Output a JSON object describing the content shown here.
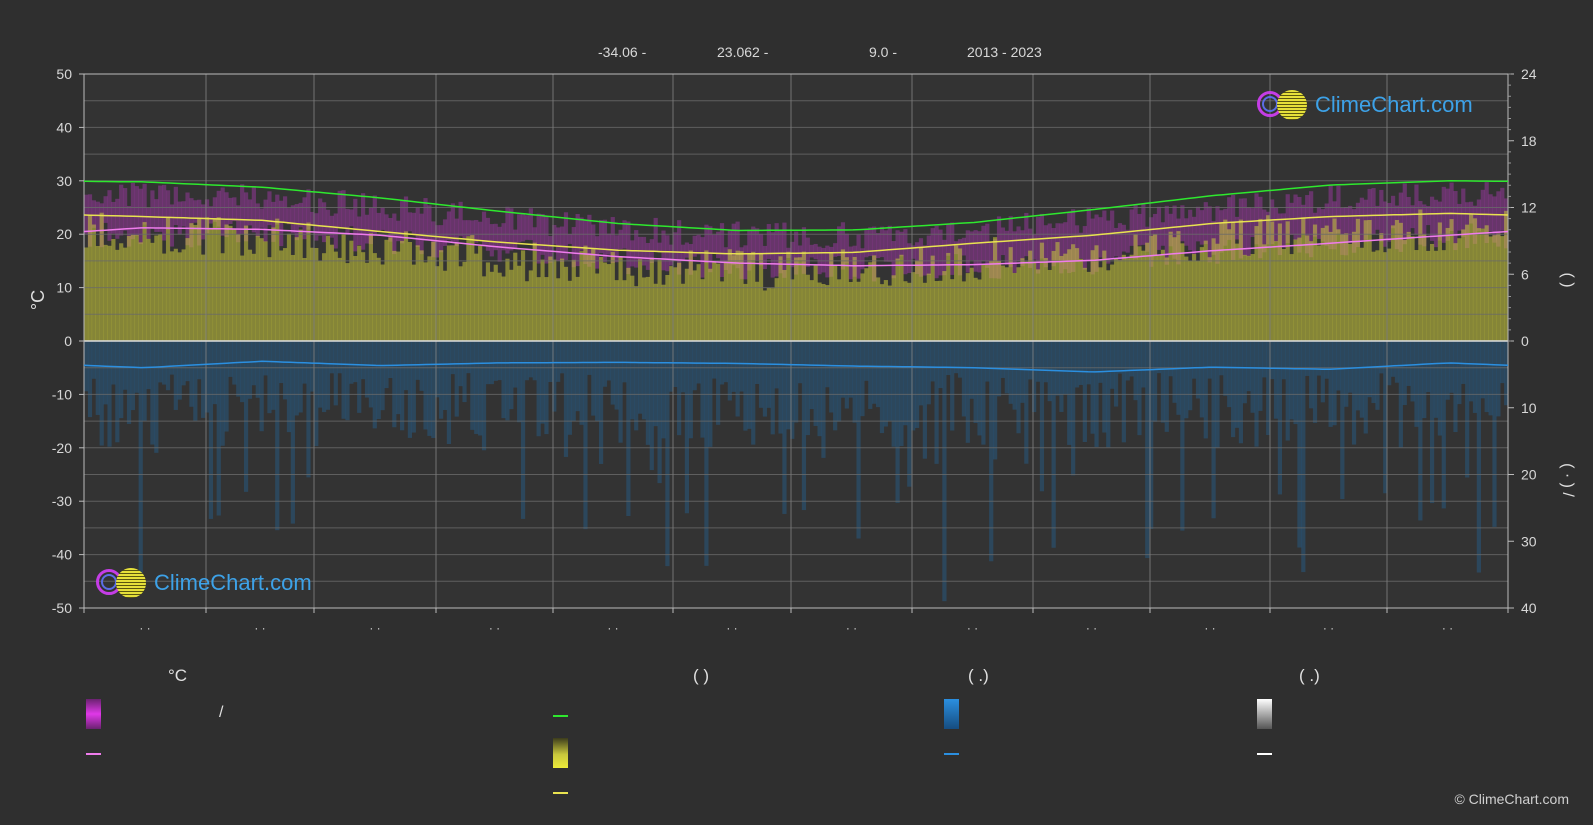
{
  "header": {
    "lat": "-34.06 -",
    "lon": "23.062 -",
    "elevation": "9.0 -",
    "years": "2013 - 2023"
  },
  "branding": {
    "name": "ClimeChart.com",
    "copyright": "© ClimeChart.com"
  },
  "legend": {
    "col1_head": "°C",
    "col1_slash": "/",
    "col2_head": "(           )",
    "col3_head": "(    .)",
    "col4_head": "(    .)"
  },
  "colors": {
    "background": "#2f2f2f",
    "daily_max_band": "#d63ce0",
    "sunshine_band": "#c8c83a",
    "precip_band": "#1e6fb0",
    "daylight_line": "#2ee82e",
    "sunshine_line": "#e9e350",
    "mean_temp_line": "#ef7cec",
    "precip_line": "#2b8fe0",
    "snow_line": "#ffffff"
  },
  "chart_data": {
    "type": "line",
    "x_labels": [
      "· ·",
      "· ·",
      "· ·",
      "· ·",
      "· ·",
      "· ·",
      "· ·",
      "· ·",
      "· ·",
      "· ·",
      "· ·",
      "· ·"
    ],
    "y_left": {
      "label": "°C",
      "ylim": [
        -50,
        50
      ],
      "ticks": [
        "50",
        "40",
        "30",
        "20",
        "10",
        "0",
        "-10",
        "-20",
        "-30",
        "-40",
        "-50"
      ]
    },
    "y_right_top": {
      "ylim": [
        0,
        24
      ],
      "ticks": [
        "24",
        "18",
        "12",
        "6",
        "0"
      ],
      "label": "(       )"
    },
    "y_right_bottom": {
      "ylim": [
        0,
        40
      ],
      "ticks": [
        "10",
        "20",
        "30",
        "40"
      ],
      "label": "(  ·  )       /"
    },
    "grid": true,
    "series": [
      {
        "values": [
          29.8,
          28.8,
          26.8,
          24.3,
          22.0,
          20.7,
          20.8,
          22.2,
          24.6,
          27.2,
          29.2,
          30.0
        ]
      },
      {
        "values": [
          23.3,
          22.6,
          20.5,
          18.5,
          17.0,
          16.3,
          16.6,
          18.3,
          19.8,
          22.0,
          23.3,
          23.9
        ]
      },
      {
        "values": [
          21.2,
          20.9,
          19.8,
          17.6,
          15.8,
          14.6,
          14.1,
          14.3,
          15.1,
          16.9,
          18.3,
          19.8
        ]
      },
      {
        "values": [
          -5.0,
          -3.8,
          -4.6,
          -4.1,
          -4.0,
          -4.2,
          -4.7,
          -5.0,
          -5.8,
          -4.9,
          -5.3,
          -4.1
        ]
      },
      {
        "values": [
          27.3,
          27.0,
          25.2,
          23.0,
          21.0,
          19.9,
          19.8,
          20.8,
          22.5,
          24.8,
          26.7,
          27.6
        ]
      },
      {
        "values": [
          20.0,
          20.0,
          19.0,
          17.0,
          15.0,
          14.0,
          13.5,
          14.0,
          14.8,
          16.8,
          18.2,
          19.5
        ]
      }
    ]
  }
}
